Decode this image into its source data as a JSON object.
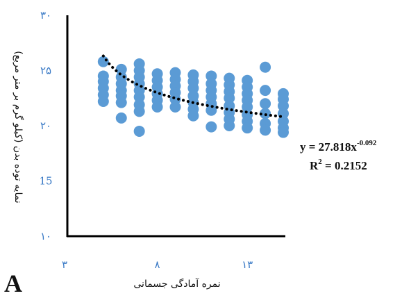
{
  "chart_data": {
    "type": "scatter",
    "xlabel": "نمره آمادگی جسمانی",
    "ylabel": "نمایه توده بدن (کیلو گرم بر متر مربع)",
    "xlim": [
      3,
      15
    ],
    "ylim": [
      10,
      30
    ],
    "x_ticks": [
      3,
      8,
      13
    ],
    "x_tick_labels": [
      "۳",
      "۸",
      "۱۳"
    ],
    "y_ticks": [
      10,
      15,
      20,
      25,
      30
    ],
    "y_tick_labels": [
      "۱۰",
      "15",
      "۲۰",
      "۲۵",
      "۳۰"
    ],
    "point_color": "#5b9bd5",
    "trend_color": "#000000",
    "trendline": {
      "type": "power",
      "a": 27.818,
      "b": -0.092,
      "style": "dotted"
    },
    "equation": {
      "prefix": "y = 27.818x",
      "exponent": "-0.092"
    },
    "r2": {
      "prefix": "R",
      "sup": "2",
      "suffix": " = 0.2152"
    },
    "panel_label": "A",
    "points": [
      {
        "x": 5,
        "y": 25.8
      },
      {
        "x": 5,
        "y": 24.5
      },
      {
        "x": 5,
        "y": 24.0
      },
      {
        "x": 5,
        "y": 23.4
      },
      {
        "x": 5,
        "y": 22.8
      },
      {
        "x": 5,
        "y": 22.2
      },
      {
        "x": 6,
        "y": 25.1
      },
      {
        "x": 6,
        "y": 24.4
      },
      {
        "x": 6,
        "y": 23.8
      },
      {
        "x": 6,
        "y": 23.2
      },
      {
        "x": 6,
        "y": 22.7
      },
      {
        "x": 6,
        "y": 22.1
      },
      {
        "x": 6,
        "y": 20.7
      },
      {
        "x": 7,
        "y": 25.6
      },
      {
        "x": 7,
        "y": 25.0
      },
      {
        "x": 7,
        "y": 24.4
      },
      {
        "x": 7,
        "y": 23.8
      },
      {
        "x": 7,
        "y": 23.2
      },
      {
        "x": 7,
        "y": 22.6
      },
      {
        "x": 7,
        "y": 21.9
      },
      {
        "x": 7,
        "y": 21.3
      },
      {
        "x": 7,
        "y": 19.5
      },
      {
        "x": 8,
        "y": 24.7
      },
      {
        "x": 8,
        "y": 24.1
      },
      {
        "x": 8,
        "y": 23.5
      },
      {
        "x": 8,
        "y": 22.9
      },
      {
        "x": 8,
        "y": 22.3
      },
      {
        "x": 8,
        "y": 21.7
      },
      {
        "x": 9,
        "y": 24.8
      },
      {
        "x": 9,
        "y": 24.2
      },
      {
        "x": 9,
        "y": 23.6
      },
      {
        "x": 9,
        "y": 23.0
      },
      {
        "x": 9,
        "y": 22.4
      },
      {
        "x": 9,
        "y": 21.7
      },
      {
        "x": 10,
        "y": 24.6
      },
      {
        "x": 10,
        "y": 24.0
      },
      {
        "x": 10,
        "y": 23.4
      },
      {
        "x": 10,
        "y": 22.7
      },
      {
        "x": 10,
        "y": 22.1
      },
      {
        "x": 10,
        "y": 21.5
      },
      {
        "x": 10,
        "y": 20.9
      },
      {
        "x": 11,
        "y": 24.5
      },
      {
        "x": 11,
        "y": 23.8
      },
      {
        "x": 11,
        "y": 23.2
      },
      {
        "x": 11,
        "y": 22.6
      },
      {
        "x": 11,
        "y": 22.0
      },
      {
        "x": 11,
        "y": 21.4
      },
      {
        "x": 11,
        "y": 19.9
      },
      {
        "x": 12,
        "y": 24.3
      },
      {
        "x": 12,
        "y": 23.7
      },
      {
        "x": 12,
        "y": 23.1
      },
      {
        "x": 12,
        "y": 22.5
      },
      {
        "x": 12,
        "y": 21.8
      },
      {
        "x": 12,
        "y": 21.2
      },
      {
        "x": 12,
        "y": 20.6
      },
      {
        "x": 12,
        "y": 20.0
      },
      {
        "x": 13,
        "y": 24.1
      },
      {
        "x": 13,
        "y": 23.5
      },
      {
        "x": 13,
        "y": 22.9
      },
      {
        "x": 13,
        "y": 22.3
      },
      {
        "x": 13,
        "y": 21.7
      },
      {
        "x": 13,
        "y": 21.0
      },
      {
        "x": 13,
        "y": 20.4
      },
      {
        "x": 13,
        "y": 19.8
      },
      {
        "x": 14,
        "y": 25.3
      },
      {
        "x": 14,
        "y": 23.2
      },
      {
        "x": 14,
        "y": 22.0
      },
      {
        "x": 14,
        "y": 21.1
      },
      {
        "x": 14,
        "y": 20.2
      },
      {
        "x": 14,
        "y": 19.6
      },
      {
        "x": 15,
        "y": 22.9
      },
      {
        "x": 15,
        "y": 22.4
      },
      {
        "x": 15,
        "y": 21.8
      },
      {
        "x": 15,
        "y": 21.1
      },
      {
        "x": 15,
        "y": 20.4
      },
      {
        "x": 15,
        "y": 19.8
      },
      {
        "x": 15,
        "y": 19.4
      }
    ]
  }
}
